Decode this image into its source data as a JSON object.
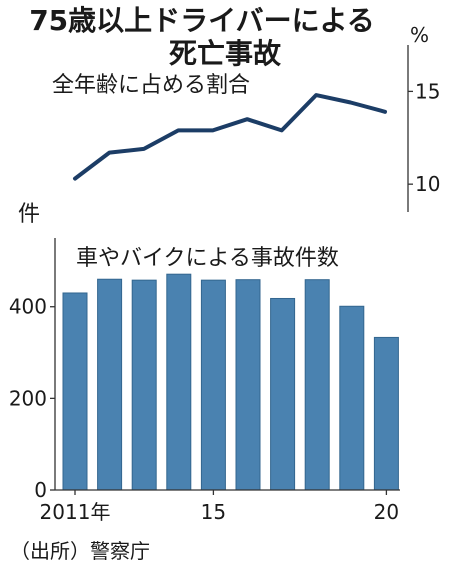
{
  "title": "75歳以上ドライバーによる死亡事故",
  "title_lines": [
    "75歳以上ドライバーによる",
    "死亡事故"
  ],
  "source": "（出所）警察庁",
  "colors": {
    "line": "#1c3d66",
    "bar": "#4a82b0",
    "bar_edge": "#33668f",
    "axis": "#333333"
  },
  "chart_data": [
    {
      "type": "line",
      "title": "全年齢に占める割合",
      "unit": "%",
      "x": [
        2011,
        2012,
        2013,
        2014,
        2015,
        2016,
        2017,
        2018,
        2019,
        2020
      ],
      "series": [
        {
          "values": [
            10.3,
            11.7,
            11.9,
            12.9,
            12.9,
            13.5,
            12.9,
            14.8,
            14.4,
            13.9
          ]
        }
      ],
      "ylim": [
        8.5,
        17.5
      ],
      "yticks": [
        10,
        15
      ],
      "ytick_labels": [
        "10",
        "15"
      ],
      "axis_side": "right"
    },
    {
      "type": "bar",
      "title": "車やバイクによる事故件数",
      "unit": "件",
      "categories": [
        "2011",
        "2012",
        "2013",
        "2014",
        "2015",
        "2016",
        "2017",
        "2018",
        "2019",
        "2020"
      ],
      "values": [
        430,
        460,
        458,
        471,
        458,
        459,
        418,
        459,
        401,
        333
      ],
      "ylim": [
        0,
        550
      ],
      "yticks": [
        0,
        200,
        400
      ],
      "ytick_labels": [
        "0",
        "200",
        "400"
      ],
      "xtick_positions": [
        2011,
        2015,
        2020
      ],
      "xtick_labels": [
        "2011年",
        "15",
        "20"
      ],
      "axis_side": "left"
    }
  ]
}
